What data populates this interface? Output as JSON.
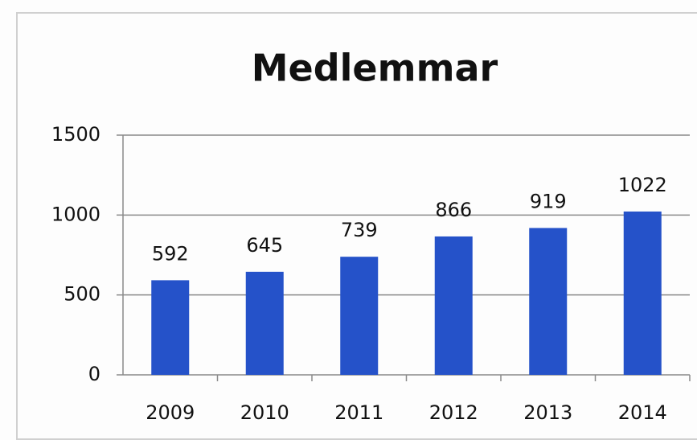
{
  "chart_data": {
    "type": "bar",
    "title": "Medlemmar",
    "categories": [
      "2009",
      "2010",
      "2011",
      "2012",
      "2013",
      "2014"
    ],
    "values": [
      592,
      645,
      739,
      866,
      919,
      1022
    ],
    "color": "#2552c9",
    "ylim": [
      0,
      1500
    ],
    "yticks": [
      0,
      500,
      1000,
      1500
    ],
    "grid": true
  }
}
